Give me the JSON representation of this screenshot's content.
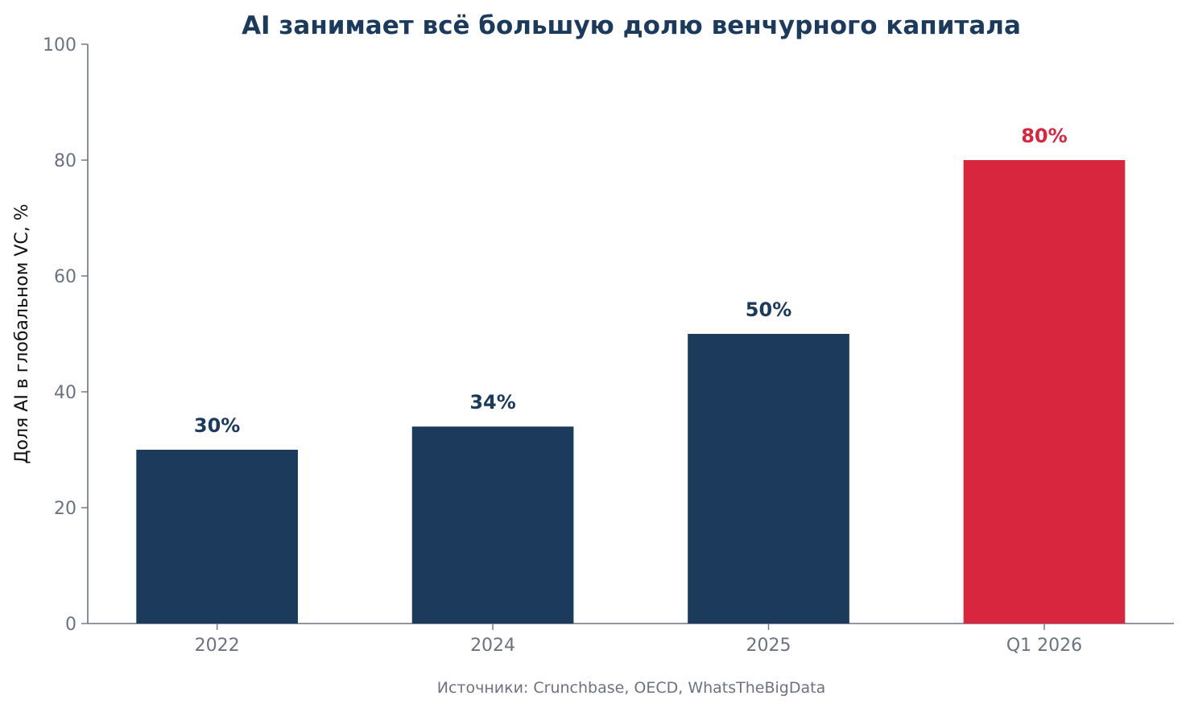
{
  "chart_data": {
    "type": "bar",
    "title": "AI занимает всё большую долю венчурного капитала",
    "ylabel": "Доля AI в глобальном VC, %",
    "xlabel": "",
    "categories": [
      "2022",
      "2024",
      "2025",
      "Q1 2026"
    ],
    "values": [
      30,
      34,
      50,
      80
    ],
    "value_labels": [
      "30%",
      "34%",
      "50%",
      "80%"
    ],
    "ylim": [
      0,
      100
    ],
    "yticks": [
      0,
      20,
      40,
      60,
      80,
      100
    ],
    "ytick_labels": [
      "0",
      "20",
      "40",
      "60",
      "80",
      "100"
    ],
    "grid": false,
    "colors": {
      "default_bar": "#1b3a5c",
      "highlight_bar": "#d7263d",
      "title": "#1b3a5c",
      "axis": "#6b7280"
    },
    "highlight_index": 3
  },
  "source": "Источники: Crunchbase, OECD, WhatsTheBigData"
}
